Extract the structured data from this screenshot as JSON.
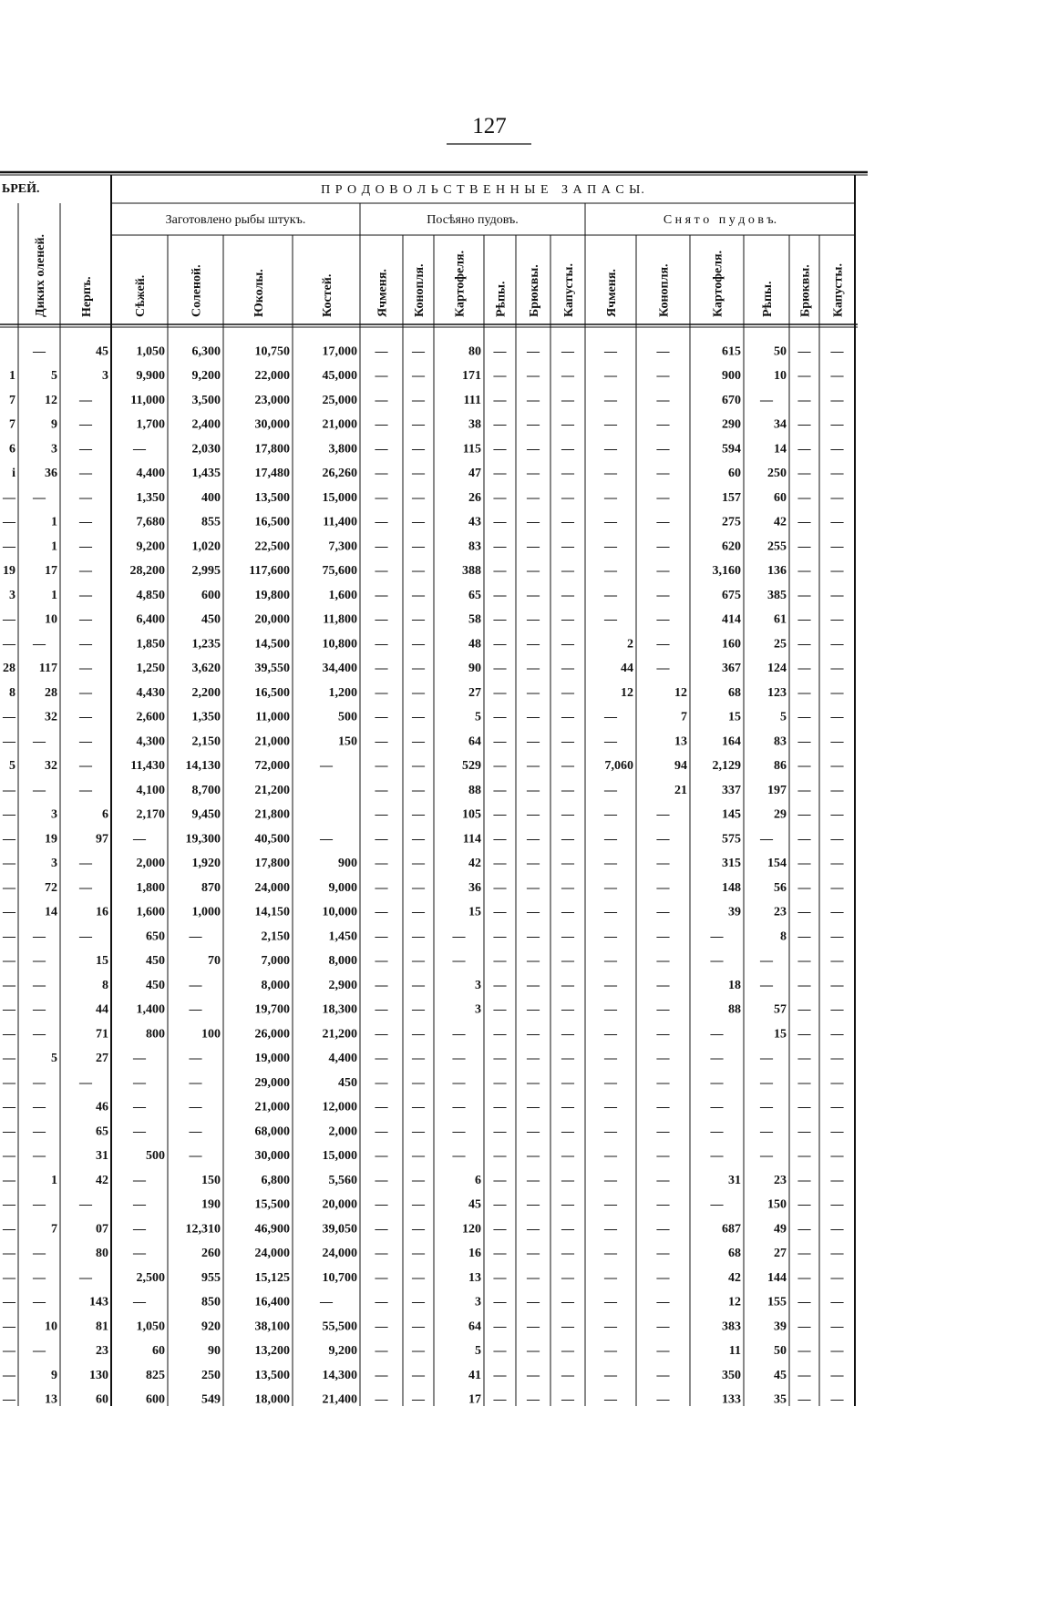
{
  "header": {
    "page_number": "127"
  },
  "table": {
    "group_left": "ЬРЕЙ.",
    "group_main": "П Р О Д О В О Л Ь С Т В Е Н Н Ы Е   З А П А С Ы.",
    "subgroups": [
      "Заготовлено рыбы штукъ.",
      "Посѣяно пудовъ.",
      "С н я т о   п у д о в ъ."
    ],
    "columns": [
      null,
      "Диких оленей.",
      "Нерпъ.",
      "Сѣжей.",
      "Соленой.",
      "Юколы.",
      "Костей.",
      "Ячменя.",
      "Конопля.",
      "Картофеля.",
      "Рѣпы.",
      "Брюквы.",
      "Капусты.",
      "Ячменя.",
      "Конопля.",
      "Картофеля.",
      "Рѣпы.",
      "Брюквы.",
      "Капусты."
    ],
    "rows": [
      [
        null,
        "—",
        "45",
        "1,050",
        "6,300",
        "10,750",
        "17,000",
        "—",
        "—",
        "80",
        "—",
        "—",
        "—",
        "—",
        "—",
        "615",
        "50",
        "—",
        "—"
      ],
      [
        "1",
        "5",
        "3",
        "9,900",
        "9,200",
        "22,000",
        "45,000",
        "—",
        "—",
        "171",
        "—",
        "—",
        "—",
        "—",
        "—",
        "900",
        "10",
        "—",
        "—"
      ],
      [
        "7",
        "12",
        "—",
        "11,000",
        "3,500",
        "23,000",
        "25,000",
        "—",
        "—",
        "111",
        "—",
        "—",
        "—",
        "—",
        "—",
        "670",
        "—",
        "—",
        "—"
      ],
      [
        "7",
        "9",
        "—",
        "1,700",
        "2,400",
        "30,000",
        "21,000",
        "—",
        "—",
        "38",
        "—",
        "—",
        "—",
        "—",
        "—",
        "290",
        "34",
        "—",
        "—"
      ],
      [
        "6",
        "3",
        "—",
        "—",
        "2,030",
        "17,800",
        "3,800",
        "—",
        "—",
        "115",
        "—",
        "—",
        "—",
        "—",
        "—",
        "594",
        "14",
        "—",
        "—"
      ],
      [
        "i",
        "36",
        "—",
        "4,400",
        "1,435",
        "17,480",
        "26,260",
        "—",
        "—",
        "47",
        "—",
        "—",
        "—",
        "—",
        "—",
        "60",
        "250",
        "—",
        "—"
      ],
      [
        "—",
        "—",
        "—",
        "1,350",
        "400",
        "13,500",
        "15,000",
        "—",
        "—",
        "26",
        "—",
        "—",
        "—",
        "—",
        "—",
        "157",
        "60",
        "—",
        "—"
      ],
      [
        "—",
        "1",
        "—",
        "7,680",
        "855",
        "16,500",
        "11,400",
        "—",
        "—",
        "43",
        "—",
        "—",
        "—",
        "—",
        "—",
        "275",
        "42",
        "—",
        "—"
      ],
      [
        "—",
        "1",
        "—",
        "9,200",
        "1,020",
        "22,500",
        "7,300",
        "—",
        "—",
        "83",
        "—",
        "—",
        "—",
        "—",
        "—",
        "620",
        "255",
        "—",
        "—"
      ],
      [
        "19",
        "17",
        "—",
        "28,200",
        "2,995",
        "117,600",
        "75,600",
        "—",
        "—",
        "388",
        "—",
        "—",
        "—",
        "—",
        "—",
        "3,160",
        "136",
        "—",
        "—"
      ],
      [
        "3",
        "1",
        "—",
        "4,850",
        "600",
        "19,800",
        "1,600",
        "—",
        "—",
        "65",
        "—",
        "—",
        "—",
        "—",
        "—",
        "675",
        "385",
        "—",
        "—"
      ],
      [
        "—",
        "10",
        "—",
        "6,400",
        "450",
        "20,000",
        "11,800",
        "—",
        "—",
        "58",
        "—",
        "—",
        "—",
        "—",
        "—",
        "414",
        "61",
        "—",
        "—"
      ],
      [
        "—",
        "—",
        "—",
        "1,850",
        "1,235",
        "14,500",
        "10,800",
        "—",
        "—",
        "48",
        "—",
        "—",
        "—",
        "2",
        "—",
        "160",
        "25",
        "—",
        "—"
      ],
      [
        "28",
        "117",
        "—",
        "1,250",
        "3,620",
        "39,550",
        "34,400",
        "—",
        "—",
        "90",
        "—",
        "—",
        "—",
        "44",
        "—",
        "367",
        "124",
        "—",
        "—"
      ],
      [
        "8",
        "28",
        "—",
        "4,430",
        "2,200",
        "16,500",
        "1,200",
        "—",
        "—",
        "27",
        "—",
        "—",
        "—",
        "12",
        "12",
        "68",
        "123",
        "—",
        "—"
      ],
      [
        "—",
        "32",
        "—",
        "2,600",
        "1,350",
        "11,000",
        "500",
        "—",
        "—",
        "5",
        "—",
        "—",
        "—",
        "—",
        "7",
        "15",
        "5",
        "—",
        "—"
      ],
      [
        "—",
        "—",
        "—",
        "4,300",
        "2,150",
        "21,000",
        "150",
        "—",
        "—",
        "64",
        "—",
        "—",
        "—",
        "—",
        "13",
        "164",
        "83",
        "—",
        "—"
      ],
      [
        "5",
        "32",
        "—",
        "11,430",
        "14,130",
        "72,000",
        "—",
        "—",
        "—",
        "529",
        "—",
        "—",
        "—",
        "7,060",
        "94",
        "2,129",
        "86",
        "—",
        "—"
      ],
      [
        "—",
        "—",
        "—",
        "4,100",
        "8,700",
        "21,200",
        null,
        "—",
        "—",
        "88",
        "—",
        "—",
        "—",
        "—",
        "21",
        "337",
        "197",
        "—",
        "—"
      ],
      [
        "—",
        "3",
        "6",
        "2,170",
        "9,450",
        "21,800",
        null,
        "—",
        "—",
        "105",
        "—",
        "—",
        "—",
        "—",
        "—",
        "145",
        "29",
        "—",
        "—"
      ],
      [
        "—",
        "19",
        "97",
        "—",
        "19,300",
        "40,500",
        "—",
        "—",
        "—",
        "114",
        "—",
        "—",
        "—",
        "—",
        "—",
        "575",
        "—",
        "—",
        "—"
      ],
      [
        "—",
        "3",
        "—",
        "2,000",
        "1,920",
        "17,800",
        "900",
        "—",
        "—",
        "42",
        "—",
        "—",
        "—",
        "—",
        "—",
        "315",
        "154",
        "—",
        "—"
      ],
      [
        "—",
        "72",
        "—",
        "1,800",
        "870",
        "24,000",
        "9,000",
        "—",
        "—",
        "36",
        "—",
        "—",
        "—",
        "—",
        "—",
        "148",
        "56",
        "—",
        "—"
      ],
      [
        "—",
        "14",
        "16",
        "1,600",
        "1,000",
        "14,150",
        "10,000",
        "—",
        "—",
        "15",
        "—",
        "—",
        "—",
        "—",
        "—",
        "39",
        "23",
        "—",
        "—"
      ],
      [
        "—",
        "—",
        "—",
        "650",
        "—",
        "2,150",
        "1,450",
        "—",
        "—",
        "—",
        "—",
        "—",
        "—",
        "—",
        "—",
        "—",
        "8",
        "—",
        "—"
      ],
      [
        "—",
        "—",
        "15",
        "450",
        "70",
        "7,000",
        "8,000",
        "—",
        "—",
        "—",
        "—",
        "—",
        "—",
        "—",
        "—",
        "—",
        "—",
        "—",
        "—"
      ],
      [
        "—",
        "—",
        "8",
        "450",
        "—",
        "8,000",
        "2,900",
        "—",
        "—",
        "3",
        "—",
        "—",
        "—",
        "—",
        "—",
        "18",
        "—",
        "—",
        "—"
      ],
      [
        "—",
        "—",
        "44",
        "1,400",
        "—",
        "19,700",
        "18,300",
        "—",
        "—",
        "3",
        "—",
        "—",
        "—",
        "—",
        "—",
        "88",
        "57",
        "—",
        "—"
      ],
      [
        "—",
        "—",
        "71",
        "800",
        "100",
        "26,000",
        "21,200",
        "—",
        "—",
        "—",
        "—",
        "—",
        "—",
        "—",
        "—",
        "—",
        "15",
        "—",
        "—"
      ],
      [
        "—",
        "5",
        "27",
        "—",
        "—",
        "19,000",
        "4,400",
        "—",
        "—",
        "—",
        "—",
        "—",
        "—",
        "—",
        "—",
        "—",
        "—",
        "—",
        "—"
      ],
      [
        "—",
        "—",
        "—",
        "—",
        "—",
        "29,000",
        "450",
        "—",
        "—",
        "—",
        "—",
        "—",
        "—",
        "—",
        "—",
        "—",
        "—",
        "—",
        "—"
      ],
      [
        "—",
        "—",
        "46",
        "—",
        "—",
        "21,000",
        "12,000",
        "—",
        "—",
        "—",
        "—",
        "—",
        "—",
        "—",
        "—",
        "—",
        "—",
        "—",
        "—"
      ],
      [
        "—",
        "—",
        "65",
        "—",
        "—",
        "68,000",
        "2,000",
        "—",
        "—",
        "—",
        "—",
        "—",
        "—",
        "—",
        "—",
        "—",
        "—",
        "—",
        "—"
      ],
      [
        "—",
        "—",
        "31",
        "500",
        "—",
        "30,000",
        "15,000",
        "—",
        "—",
        "—",
        "—",
        "—",
        "—",
        "—",
        "—",
        "—",
        "—",
        "—",
        "—"
      ],
      [
        "—",
        "1",
        "42",
        "—",
        "150",
        "6,800",
        "5,560",
        "—",
        "—",
        "6",
        "—",
        "—",
        "—",
        "—",
        "—",
        "31",
        "23",
        "—",
        "—"
      ],
      [
        "—",
        "—",
        "—",
        "—",
        "190",
        "15,500",
        "20,000",
        "—",
        "—",
        "45",
        "—",
        "—",
        "—",
        "—",
        "—",
        "—",
        "150",
        "—",
        "—"
      ],
      [
        "—",
        "7",
        "07",
        "—",
        "12,310",
        "46,900",
        "39,050",
        "—",
        "—",
        "120",
        "—",
        "—",
        "—",
        "—",
        "—",
        "687",
        "49",
        "—",
        "—"
      ],
      [
        "—",
        "—",
        "80",
        "—",
        "260",
        "24,000",
        "24,000",
        "—",
        "—",
        "16",
        "—",
        "—",
        "—",
        "—",
        "—",
        "68",
        "27",
        "—",
        "—"
      ],
      [
        "—",
        "—",
        "—",
        "2,500",
        "955",
        "15,125",
        "10,700",
        "—",
        "—",
        "13",
        "—",
        "—",
        "—",
        "—",
        "—",
        "42",
        "144",
        "—",
        "—"
      ],
      [
        "—",
        "—",
        "143",
        "—",
        "850",
        "16,400",
        "—",
        "—",
        "—",
        "3",
        "—",
        "—",
        "—",
        "—",
        "—",
        "12",
        "155",
        "—",
        "—"
      ],
      [
        "—",
        "10",
        "81",
        "1,050",
        "920",
        "38,100",
        "55,500",
        "—",
        "—",
        "64",
        "—",
        "—",
        "—",
        "—",
        "—",
        "383",
        "39",
        "—",
        "—"
      ],
      [
        "—",
        "—",
        "23",
        "60",
        "90",
        "13,200",
        "9,200",
        "—",
        "—",
        "5",
        "—",
        "—",
        "—",
        "—",
        "—",
        "11",
        "50",
        "—",
        "—"
      ],
      [
        "—",
        "9",
        "130",
        "825",
        "250",
        "13,500",
        "14,300",
        "—",
        "—",
        "41",
        "—",
        "—",
        "—",
        "—",
        "—",
        "350",
        "45",
        "—",
        "—"
      ],
      [
        "—",
        "13",
        "60",
        "600",
        "549",
        "18,000",
        "21,400",
        "—",
        "—",
        "17",
        "—",
        "—",
        "—",
        "—",
        "—",
        "133",
        "35",
        "—",
        "—"
      ]
    ]
  }
}
